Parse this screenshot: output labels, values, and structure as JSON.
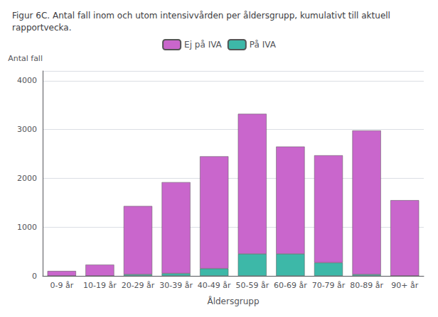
{
  "chart_data": {
    "type": "bar",
    "title": "Figur 6C. Antal fall inom och utom intensivvården per åldersgrupp, kumulativt till aktuell rapportvecka.",
    "xlabel": "Åldersgrupp",
    "ylabel": "Antal fall",
    "categories": [
      "0-9 år",
      "10-19 år",
      "20-29 år",
      "30-39 år",
      "40-49 år",
      "50-59 år",
      "60-69 år",
      "70-79 år",
      "80-89 år",
      "90+ år"
    ],
    "series": [
      {
        "name": "På IVA",
        "color": "#3db8a8",
        "values": [
          0,
          0,
          30,
          50,
          150,
          450,
          450,
          270,
          30,
          0
        ]
      },
      {
        "name": "Ej på IVA",
        "color": "#c966cc",
        "values": [
          100,
          230,
          1400,
          1870,
          2300,
          2870,
          2200,
          2200,
          2950,
          1550
        ]
      }
    ],
    "stacked": true,
    "ylim": [
      0,
      4200
    ],
    "yticks": [
      0,
      1000,
      2000,
      3000,
      4000
    ],
    "grid": true,
    "legend": "top"
  }
}
